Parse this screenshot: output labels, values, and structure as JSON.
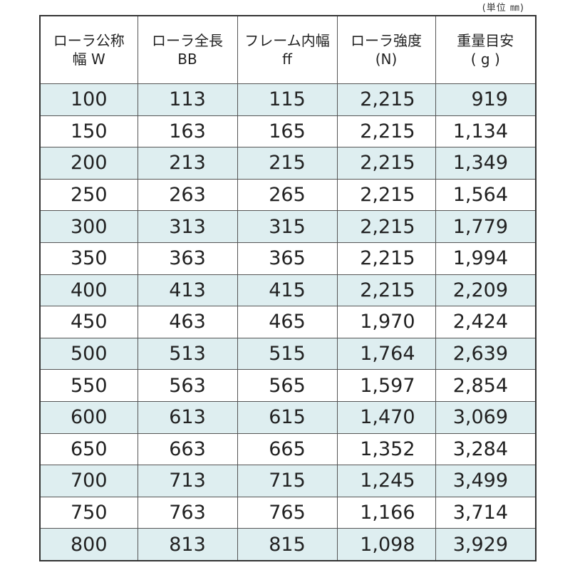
{
  "unit_note": "(単位 ㎜)",
  "columns": [
    {
      "line1": "ローラ公称",
      "line2": "幅 W"
    },
    {
      "line1": "ローラ全長",
      "line2": "BB"
    },
    {
      "line1": "フレーム内幅",
      "line2": "ff"
    },
    {
      "line1": "ローラ強度",
      "line2": "(N)"
    },
    {
      "line1": "重量目安",
      "line2": "( g )"
    }
  ],
  "rows": [
    [
      "100",
      "113",
      "115",
      "2,215",
      "919"
    ],
    [
      "150",
      "163",
      "165",
      "2,215",
      "1,134"
    ],
    [
      "200",
      "213",
      "215",
      "2,215",
      "1,349"
    ],
    [
      "250",
      "263",
      "265",
      "2,215",
      "1,564"
    ],
    [
      "300",
      "313",
      "315",
      "2,215",
      "1,779"
    ],
    [
      "350",
      "363",
      "365",
      "2,215",
      "1,994"
    ],
    [
      "400",
      "413",
      "415",
      "2,215",
      "2,209"
    ],
    [
      "450",
      "463",
      "465",
      "1,970",
      "2,424"
    ],
    [
      "500",
      "513",
      "515",
      "1,764",
      "2,639"
    ],
    [
      "550",
      "563",
      "565",
      "1,597",
      "2,854"
    ],
    [
      "600",
      "613",
      "615",
      "1,470",
      "3,069"
    ],
    [
      "650",
      "663",
      "665",
      "1,352",
      "3,284"
    ],
    [
      "700",
      "713",
      "715",
      "1,245",
      "3,499"
    ],
    [
      "750",
      "763",
      "765",
      "1,166",
      "3,714"
    ],
    [
      "800",
      "813",
      "815",
      "1,098",
      "3,929"
    ]
  ],
  "colors": {
    "shaded_row": "#deeef0",
    "border": "#333333"
  }
}
